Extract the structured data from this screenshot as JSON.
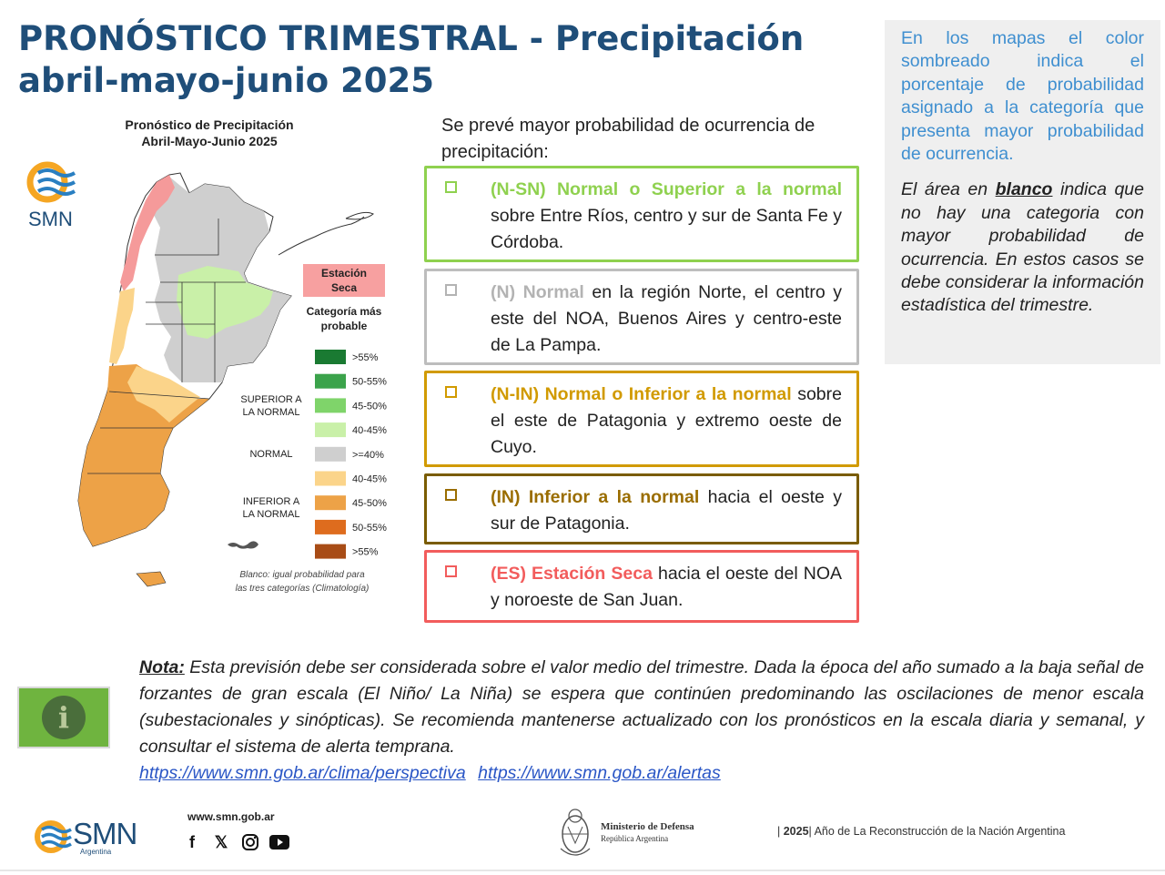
{
  "title": {
    "line1": "PRONÓSTICO TRIMESTRAL - Precipitación",
    "line2": "abril-mayo-junio 2025"
  },
  "info_box": {
    "p1": "En los mapas el color sombreado indica el porcentaje de probabilidad asignado a la categoría que presenta mayor probabilidad de ocurrencia.",
    "p2_pre": "El área en ",
    "p2_bold": "blanco",
    "p2_post": " indica que no hay una categoria con mayor probabilidad de ocurrencia. En estos casos se debe considerar la información estadística del trimestre."
  },
  "map": {
    "title_line1": "Pronóstico de Precipitación",
    "title_line2": "Abril-Mayo-Junio 2025",
    "logo_text": "SMN",
    "dry_season_label_1": "Estación",
    "dry_season_label_2": "Seca",
    "category_label_1": "Categoría más",
    "category_label_2": "probable",
    "group_superior_1": "SUPERIOR A",
    "group_superior_2": "LA NORMAL",
    "group_normal": "NORMAL",
    "group_inferior_1": "INFERIOR A",
    "group_inferior_2": "LA NORMAL",
    "legend": [
      {
        "label": ">55%",
        "color": "#1a7a32"
      },
      {
        "label": "50-55%",
        "color": "#3ba34b"
      },
      {
        "label": "45-50%",
        "color": "#7fd46a"
      },
      {
        "label": "40-45%",
        "color": "#c9f0a8"
      },
      {
        "label": ">=40%",
        "color": "#cfcfcf"
      },
      {
        "label": "40-45%",
        "color": "#fbd48a"
      },
      {
        "label": "45-50%",
        "color": "#eda247"
      },
      {
        "label": "50-55%",
        "color": "#de6c1e"
      },
      {
        "label": ">55%",
        "color": "#a84c16"
      }
    ],
    "footnote_1": "Blanco: igual probabilidad para",
    "footnote_2": "las tres categorías (Climatología)"
  },
  "intro": "Se prevé mayor probabilidad de ocurrencia de precipitación:",
  "categories": [
    {
      "code": "(N-SN) Normal o Superior a la normal",
      "text": " sobre Entre Ríos, centro y sur de Santa Fe y Córdoba.",
      "color": "#8fd14f",
      "label_color": "#8fd14f"
    },
    {
      "code": "(N) Normal",
      "text": " en la región Norte, el centro y este del NOA, Buenos Aires y centro-este de La Pampa.",
      "color": "#bdbdbd",
      "label_color": "#b3b3b3"
    },
    {
      "code": "(N-IN) Normal o Inferior a la normal",
      "text": " sobre el este de Patagonia y extremo oeste de Cuyo.",
      "color": "#d19a00",
      "label_color": "#d19a00"
    },
    {
      "code": "(IN) Inferior a la normal",
      "text": " hacia el oeste y sur de Patagonia.",
      "color": "#7a5c00",
      "label_color": "#9a6d00"
    },
    {
      "code": "(ES) Estación Seca",
      "text": " hacia el oeste del NOA y noroeste de San Juan.",
      "color": "#f25c5c",
      "label_color": "#f25c5c"
    }
  ],
  "note": {
    "label": "Nota:",
    "text": " Esta previsión debe ser considerada sobre el valor medio del trimestre. Dada la época del año sumado a la baja señal de forzantes de gran escala (El Niño/ La Niña) se espera que continúen predominando las oscilaciones de menor escala (subestacionales y sinópticas). Se recomienda mantenerse actualizado con los pronósticos en la escala diaria y semanal, y consultar el sistema de alerta temprana.",
    "link1": "https://www.smn.gob.ar/clima/perspectiva",
    "link2": "https://www.smn.gob.ar/alertas"
  },
  "info_icon_glyph": "i",
  "footer": {
    "smn": "SMN",
    "smn_sub": "Argentina",
    "website": "www.smn.gob.ar",
    "social_icons": [
      "facebook-icon",
      "x-icon",
      "instagram-icon",
      "youtube-icon"
    ],
    "ministry_1": "Ministerio de Defensa",
    "ministry_2": "República Argentina",
    "year": "2025",
    "year_text": " Año de La Reconstrucción de la Nación Argentina"
  }
}
